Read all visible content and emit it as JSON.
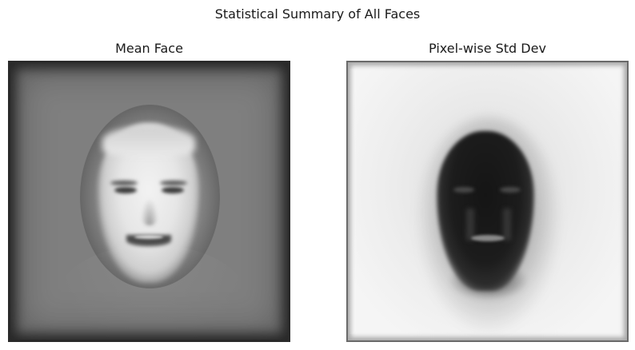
{
  "figure": {
    "suptitle": "Statistical Summary of All Faces"
  },
  "panels": [
    {
      "title": "Mean Face",
      "colormap": "gray"
    },
    {
      "title": "Pixel-wise Std Dev",
      "colormap": "gray"
    }
  ],
  "colors": {
    "background": "#ffffff",
    "text": "#1a1a1a"
  }
}
